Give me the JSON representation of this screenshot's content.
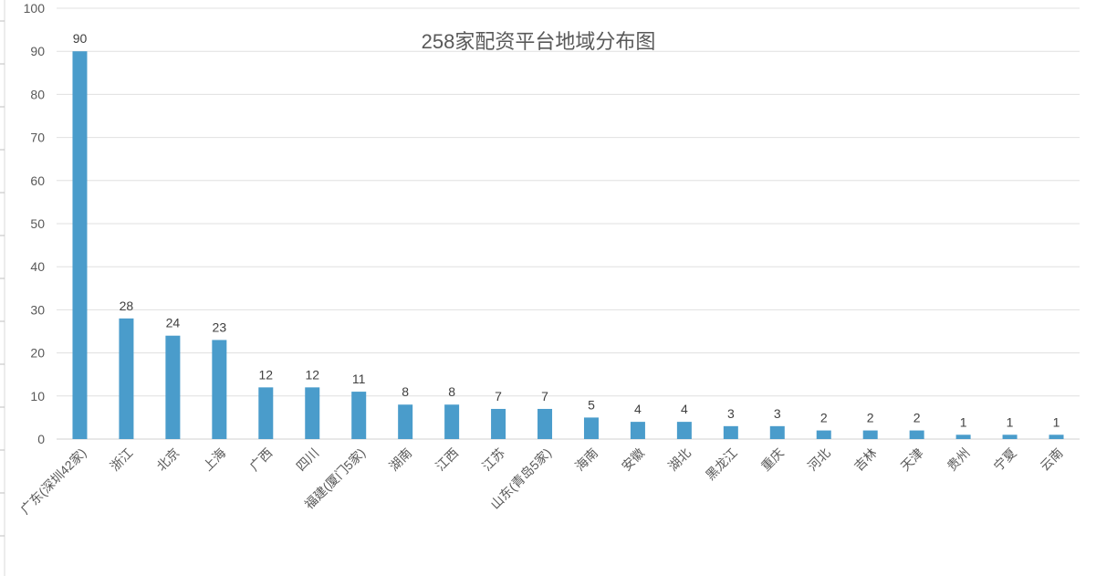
{
  "chart_data": {
    "type": "bar",
    "title": "258家配资平台地域分布图",
    "xlabel": "",
    "ylabel": "",
    "ylim": [
      0,
      100
    ],
    "yticks": [
      0,
      10,
      20,
      30,
      40,
      50,
      60,
      70,
      80,
      90,
      100
    ],
    "grid": true,
    "legend": "none",
    "bar_color": "#4a9ccb",
    "categories": [
      "广东(深圳42家)",
      "浙江",
      "北京",
      "上海",
      "广西",
      "四川",
      "福建(厦门5家)",
      "湖南",
      "江西",
      "江苏",
      "山东(青岛5家)",
      "海南",
      "安徽",
      "湖北",
      "黑龙江",
      "重庆",
      "河北",
      "吉林",
      "天津",
      "贵州",
      "宁夏",
      "云南"
    ],
    "values": [
      90,
      28,
      24,
      23,
      12,
      12,
      11,
      8,
      8,
      7,
      7,
      5,
      4,
      4,
      3,
      3,
      2,
      2,
      2,
      1,
      1,
      1
    ]
  }
}
